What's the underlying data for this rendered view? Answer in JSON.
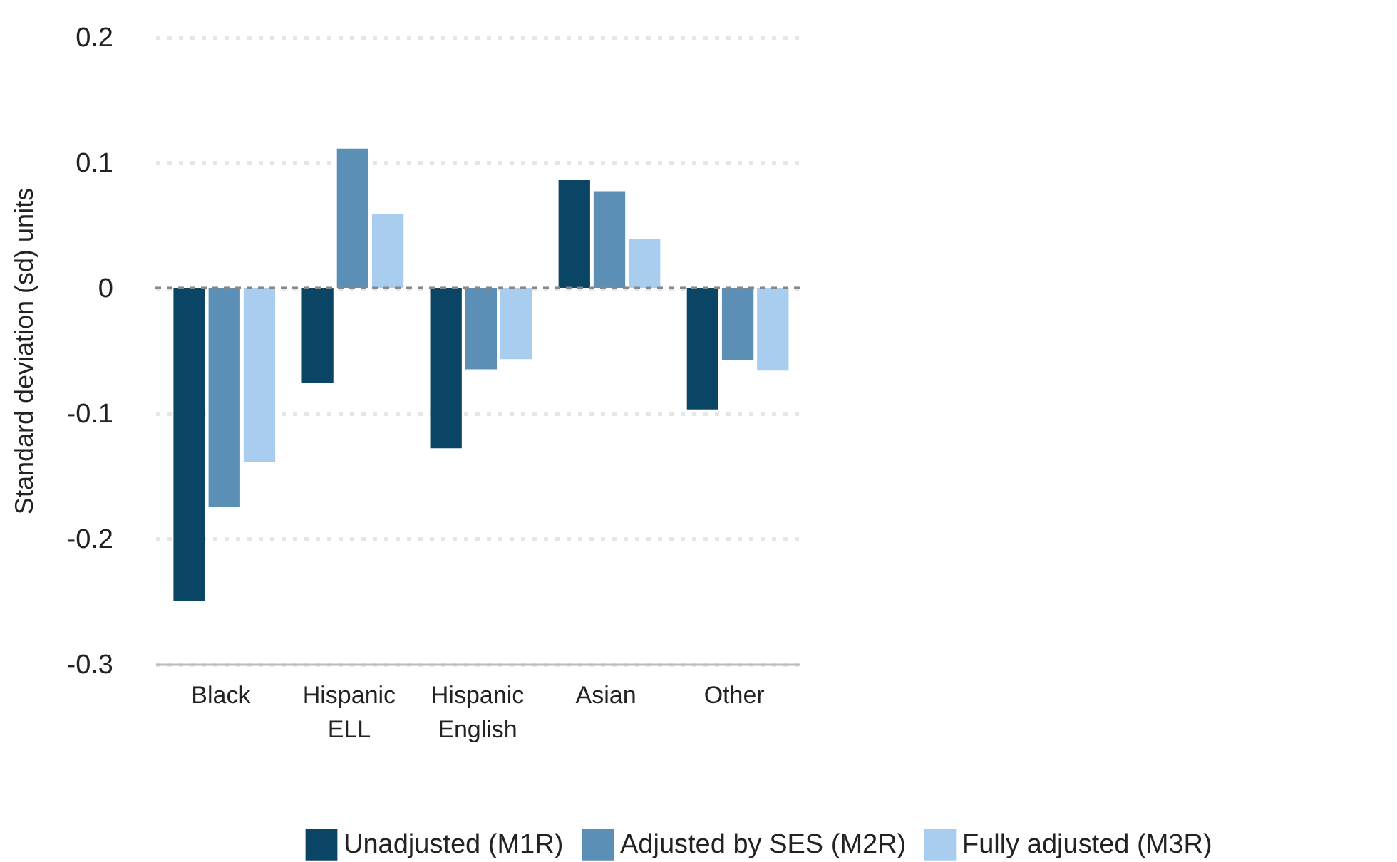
{
  "chart_data": {
    "type": "bar",
    "ylabel": "Standard deviation (sd) units",
    "categories": [
      "Black",
      "Hispanic\nELL",
      "Hispanic\nEnglish",
      "Asian",
      "Other"
    ],
    "series": [
      {
        "name": "Unadjusted (M1R)",
        "color": "#0b4566",
        "values": [
          -0.25,
          -0.076,
          -0.128,
          0.086,
          -0.097
        ]
      },
      {
        "name": "Adjusted by SES (M2R)",
        "color": "#5b8fb6",
        "values": [
          -0.175,
          0.111,
          -0.065,
          0.077,
          -0.058
        ]
      },
      {
        "name": "Fully adjusted (M3R)",
        "color": "#a9cdef",
        "values": [
          -0.139,
          0.059,
          -0.057,
          0.039,
          -0.066
        ]
      }
    ],
    "ylim": [
      -0.3,
      0.2
    ],
    "yticks": [
      -0.3,
      -0.2,
      -0.1,
      0,
      0.1,
      0.2
    ],
    "grid": "y",
    "legend": "bottom right",
    "ref_lines": [
      {
        "axis": "y",
        "value": 0,
        "color": "#888888",
        "line_style": "dashed"
      }
    ]
  }
}
